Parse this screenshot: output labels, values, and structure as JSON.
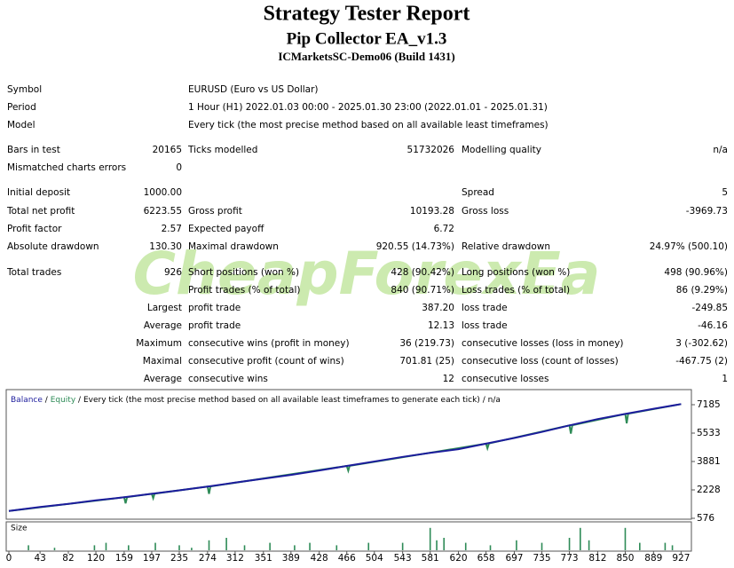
{
  "header": {
    "title": "Strategy Tester Report",
    "subtitle": "Pip Collector EA_v1.3",
    "server": "ICMarketsSC-Demo06 (Build 1431)"
  },
  "info": [
    [
      "Symbol",
      "EURUSD (Euro vs US Dollar)"
    ],
    [
      "Period",
      "1 Hour (H1) 2022.01.03 00:00 - 2025.01.30 23:00 (2022.01.01 - 2025.01.31)"
    ],
    [
      "Model",
      "Every tick (the most precise method based on all available least timeframes)"
    ]
  ],
  "stats": {
    "rows": [
      [
        "Bars in test",
        "20165",
        "Ticks modelled",
        "51732026",
        "Modelling quality",
        "n/a"
      ],
      [
        "Mismatched charts errors",
        "0",
        null,
        null,
        null,
        null
      ],
      [
        "Initial deposit",
        "1000.00",
        null,
        null,
        "Spread",
        "5"
      ],
      [
        "Total net profit",
        "6223.55",
        "Gross profit",
        "10193.28",
        "Gross loss",
        "-3969.73"
      ],
      [
        "Profit factor",
        "2.57",
        "Expected payoff",
        "6.72",
        null,
        null
      ],
      [
        "Absolute drawdown",
        "130.30",
        "Maximal drawdown",
        "920.55 (14.73%)",
        "Relative drawdown",
        "24.97% (500.10)"
      ],
      [
        "Total trades",
        "926",
        "Short positions (won %)",
        "428 (90.42%)",
        "Long positions (won %)",
        "498 (90.96%)"
      ],
      [
        null,
        null,
        "Profit trades (% of total)",
        "840 (90.71%)",
        "Loss trades (% of total)",
        "86 (9.29%)"
      ],
      [
        null,
        "Largest",
        "profit trade",
        "387.20",
        "loss trade",
        "-249.85"
      ],
      [
        null,
        "Average",
        "profit trade",
        "12.13",
        "loss trade",
        "-46.16"
      ],
      [
        null,
        "Maximum",
        "consecutive wins (profit in money)",
        "36 (219.73)",
        "consecutive losses (loss in money)",
        "3 (-302.62)"
      ],
      [
        null,
        "Maximal",
        "consecutive profit (count of wins)",
        "701.81 (25)",
        "consecutive loss (count of losses)",
        "-467.75 (2)"
      ],
      [
        null,
        "Average",
        "consecutive wins",
        "12",
        "consecutive losses",
        "1"
      ]
    ]
  },
  "watermark": "CheapForexEa",
  "chart_data": [
    {
      "type": "line",
      "legend_separator": "/",
      "legend_note": "Every tick (the most precise method based on all available least timeframes to generate each tick)",
      "legend_quality": "n/a",
      "xlim": [
        0,
        940
      ],
      "ylim": [
        576,
        7908
      ],
      "yticks": [
        576,
        2228,
        3881,
        5533,
        7185
      ],
      "xticks": [
        0,
        43,
        82,
        120,
        159,
        197,
        235,
        274,
        312,
        351,
        389,
        428,
        466,
        504,
        543,
        581,
        620,
        658,
        697,
        735,
        773,
        812,
        850,
        889,
        927
      ],
      "series": [
        {
          "name": "Equity",
          "color": "#2e8b57",
          "x": [
            0,
            159,
            161,
            163,
            197,
            199,
            201,
            274,
            276,
            278,
            466,
            468,
            470,
            658,
            660,
            662,
            773,
            775,
            777,
            850,
            852,
            854,
            927
          ],
          "values": [
            1000,
            1800,
            1450,
            1810,
            2000,
            1750,
            2010,
            2420,
            2000,
            2430,
            3620,
            3350,
            3630,
            4920,
            4650,
            4930,
            5980,
            5500,
            5990,
            6650,
            6100,
            6660,
            7223
          ]
        },
        {
          "name": "Balance",
          "color": "#1c1c9c",
          "x": [
            0,
            43,
            82,
            120,
            159,
            197,
            235,
            274,
            312,
            351,
            389,
            428,
            466,
            504,
            543,
            581,
            620,
            658,
            697,
            735,
            773,
            812,
            850,
            889,
            927
          ],
          "values": [
            1000,
            1230,
            1420,
            1620,
            1800,
            2000,
            2200,
            2420,
            2650,
            2880,
            3100,
            3360,
            3620,
            3880,
            4150,
            4380,
            4600,
            4920,
            5250,
            5600,
            5980,
            6350,
            6650,
            6950,
            7223
          ]
        }
      ]
    },
    {
      "type": "bar",
      "title": "Size",
      "color": "#2e8b57",
      "ylim": [
        0,
        0.1
      ],
      "x": [
        27,
        63,
        118,
        134,
        165,
        202,
        235,
        252,
        276,
        300,
        325,
        360,
        394,
        415,
        452,
        496,
        543,
        581,
        590,
        600,
        630,
        664,
        700,
        735,
        773,
        788,
        800,
        850,
        870,
        905,
        915
      ],
      "values": [
        0.02,
        0.01,
        0.02,
        0.03,
        0.02,
        0.03,
        0.02,
        0.01,
        0.04,
        0.05,
        0.02,
        0.03,
        0.02,
        0.03,
        0.02,
        0.03,
        0.03,
        0.09,
        0.04,
        0.05,
        0.03,
        0.02,
        0.04,
        0.03,
        0.05,
        0.09,
        0.04,
        0.09,
        0.03,
        0.03,
        0.02
      ]
    }
  ]
}
